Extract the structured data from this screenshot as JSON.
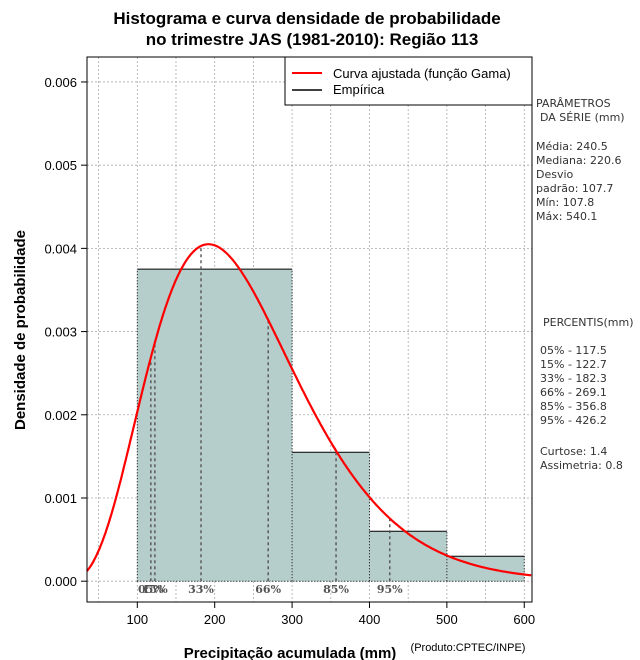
{
  "chart_data": {
    "type": "bar",
    "title_line1": "Histograma e curva densidade de probabilidade",
    "title_line2": "no trimestre JAS (1981-2010): Região 113",
    "xlabel": "Precipitação acumulada (mm)",
    "ylabel": "Densidade de probabilidade",
    "credit": "(Produto:CPTEC/INPE)",
    "xlim": [
      35,
      610
    ],
    "ylim": [
      -0.00025,
      0.0063
    ],
    "x_ticks": [
      100,
      200,
      300,
      400,
      500,
      600
    ],
    "x_tick_labels": [
      "100",
      "200",
      "300",
      "400",
      "500",
      "600"
    ],
    "y_ticks": [
      0,
      0.001,
      0.002,
      0.003,
      0.004,
      0.005,
      0.006
    ],
    "y_tick_labels": [
      "0.000",
      "0.001",
      "0.002",
      "0.003",
      "0.004",
      "0.005",
      "0.006"
    ],
    "grid": true,
    "histogram": {
      "bins": [
        {
          "from": 100,
          "to": 300,
          "density": 0.00375
        },
        {
          "from": 300,
          "to": 400,
          "density": 0.00155
        },
        {
          "from": 400,
          "to": 500,
          "density": 0.0006
        },
        {
          "from": 500,
          "to": 600,
          "density": 0.0003
        }
      ],
      "color": "#b5cdcb"
    },
    "curve": {
      "name": "Curva ajustada (função Gama)",
      "color": "#ff0000",
      "mode_x": 192,
      "peak_density": 0.00405,
      "mean": 240.5,
      "sd": 107.7
    },
    "percentiles": [
      {
        "label": "05%",
        "x": 117.5
      },
      {
        "label": "15%",
        "x": 122.7
      },
      {
        "label": "33%",
        "x": 182.3
      },
      {
        "label": "66%",
        "x": 269.1
      },
      {
        "label": "85%",
        "x": 356.8
      },
      {
        "label": "95%",
        "x": 426.2
      }
    ],
    "legend": {
      "position": "top-right",
      "items": [
        {
          "label": "Curva ajustada (função Gama)",
          "color": "#ff0000"
        },
        {
          "label": "Empírica",
          "color": "#000000"
        }
      ]
    }
  },
  "side_panel": {
    "params_title_1": "PARÂMETROS",
    "params_title_2": "DA SÉRIE (mm)",
    "media": "Média:  240.5",
    "mediana": "Mediana:  220.6",
    "desvio": "Desvio",
    "padrao": "padrão:  107.7",
    "min": "Mín:  107.8",
    "max": "Máx:  540.1",
    "percentis_title": "PERCENTIS(mm)",
    "p05": "05% -  117.5",
    "p15": "15% -  122.7",
    "p33": "33% -  182.3",
    "p66": "66% -  269.1",
    "p85": "85% -  356.8",
    "p95": "95% -  426.2",
    "curtose": "Curtose:  1.4",
    "assimetria": "Assimetria:  0.8"
  }
}
